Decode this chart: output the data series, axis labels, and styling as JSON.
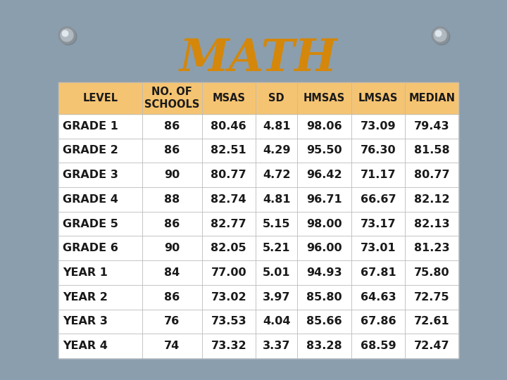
{
  "title": "MATH",
  "title_color": "#D4870A",
  "title_fontsize": 46,
  "background_color": "#8B9EAE",
  "paper_color": "#F8F8F5",
  "header_bg_color": "#F5C472",
  "header_text_color": "#1A1A1A",
  "columns": [
    "LEVEL",
    "NO. OF\nSCHOOLS",
    "MSAS",
    "SD",
    "HMSAS",
    "LMSAS",
    "MEDIAN"
  ],
  "rows": [
    [
      "GRADE 1",
      "86",
      "80.46",
      "4.81",
      "98.06",
      "73.09",
      "79.43"
    ],
    [
      "GRADE 2",
      "86",
      "82.51",
      "4.29",
      "95.50",
      "76.30",
      "81.58"
    ],
    [
      "GRADE 3",
      "90",
      "80.77",
      "4.72",
      "96.42",
      "71.17",
      "80.77"
    ],
    [
      "GRADE 4",
      "88",
      "82.74",
      "4.81",
      "96.71",
      "66.67",
      "82.12"
    ],
    [
      "GRADE 5",
      "86",
      "82.77",
      "5.15",
      "98.00",
      "73.17",
      "82.13"
    ],
    [
      "GRADE 6",
      "90",
      "82.05",
      "5.21",
      "96.00",
      "73.01",
      "81.23"
    ],
    [
      "YEAR 1",
      "84",
      "77.00",
      "5.01",
      "94.93",
      "67.81",
      "75.80"
    ],
    [
      "YEAR 2",
      "86",
      "73.02",
      "3.97",
      "85.80",
      "64.63",
      "72.75"
    ],
    [
      "YEAR 3",
      "76",
      "73.53",
      "4.04",
      "85.66",
      "67.86",
      "72.61"
    ],
    [
      "YEAR 4",
      "74",
      "73.32",
      "3.37",
      "83.28",
      "68.59",
      "72.47"
    ]
  ],
  "col_widths": [
    1.4,
    1.0,
    0.9,
    0.7,
    0.9,
    0.9,
    0.9
  ],
  "data_text_color": "#1A1A1A",
  "data_fontsize": 11.5,
  "header_fontsize": 10.5,
  "pin_color_outer": "#A0A8B0",
  "pin_color_inner": "#D8DDE2",
  "pin_color_highlight": "#EAEEF0",
  "row_bg_odd": "#FFFFFF",
  "row_bg_even": "#FEF5E7"
}
